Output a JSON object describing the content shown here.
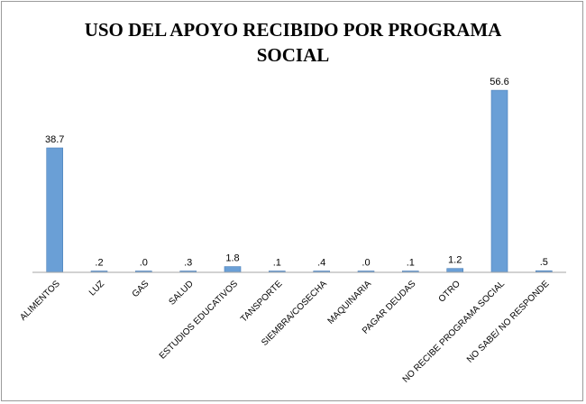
{
  "chart_data": {
    "type": "bar",
    "title_lines": [
      "USO DEL APOYO RECIBIDO POR PROGRAMA",
      "SOCIAL"
    ],
    "categories": [
      "ALIMENTOS",
      "LUZ",
      "GAS",
      "SALUD",
      "ESTUDIOS EDUCATIVOS",
      "TANSPORTE",
      "SIEMBRA/COSECHA",
      "MAQUINARIA",
      "PAGAR DEUDAS",
      "OTRO",
      "NO RECIBE PROGRAMA SOCIAL",
      "NO SABE/ NO RESPONDE"
    ],
    "values": [
      38.7,
      0.2,
      0.0,
      0.3,
      1.8,
      0.1,
      0.4,
      0.0,
      0.1,
      1.2,
      56.6,
      0.5
    ],
    "data_labels": [
      "38.7",
      ".2",
      ".0",
      ".3",
      "1.8",
      ".1",
      ".4",
      ".0",
      ".1",
      "1.2",
      "56.6",
      ".5"
    ],
    "ylim": [
      0,
      60
    ],
    "grid": false,
    "legend": "none",
    "bar_color": "#6a9fd6",
    "bar_edge_color": "#4a7fb8",
    "axis_color": "#a6a6a6"
  }
}
